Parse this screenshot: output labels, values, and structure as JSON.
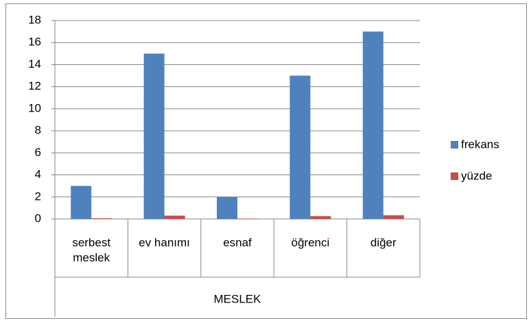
{
  "chart_data": {
    "type": "bar",
    "categories": [
      "serbest meslek",
      "ev hanımı",
      "esnaf",
      "öğrenci",
      "diğer"
    ],
    "category_group": "MESLEK",
    "series": [
      {
        "name": "frekans",
        "color": "#4f81bd",
        "values": [
          3,
          15,
          2,
          13,
          17
        ]
      },
      {
        "name": "yüzde",
        "color": "#c0504d",
        "values": [
          0.06,
          0.3,
          0.04,
          0.26,
          0.34
        ]
      }
    ],
    "ylim": [
      0,
      18
    ],
    "yticks": [
      0,
      2,
      4,
      6,
      8,
      10,
      12,
      14,
      16,
      18
    ],
    "grid": true,
    "legend": "right"
  }
}
